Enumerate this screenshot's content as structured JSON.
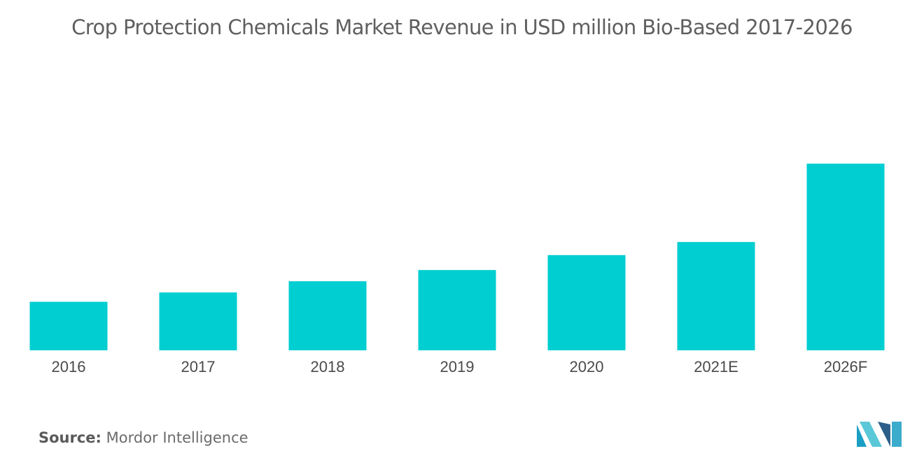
{
  "title": "Crop Protection Chemicals Market Revenue in USD million Bio-Based 2017-2026",
  "chart_data": {
    "type": "bar",
    "categories": [
      "2016",
      "2017",
      "2018",
      "2019",
      "2020",
      "2021E",
      "2026F"
    ],
    "values": [
      26,
      31,
      37,
      43,
      51,
      58,
      100
    ],
    "ylim": [
      0,
      100
    ],
    "grid": false,
    "legend": "none",
    "bar_color": "#00ced1"
  },
  "source": {
    "label": "Source:",
    "text": "Mordor Intelligence"
  },
  "logo": {
    "icon": "mordor-intelligence-logo",
    "colors": [
      "#1a9ec4",
      "#5bc8d8",
      "#2e5f8a"
    ]
  }
}
